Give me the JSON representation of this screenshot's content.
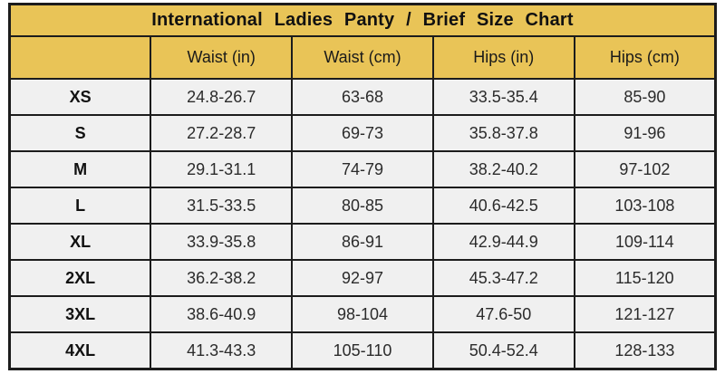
{
  "title": "International Ladies Panty / Brief Size Chart",
  "colors": {
    "header_gold": "#e9c457",
    "border_black": "#1c1c1c",
    "row_background": "#f0f0f0",
    "text_dark": "#2b2b2b"
  },
  "chart_data": {
    "type": "table",
    "title": "International Ladies Panty / Brief Size Chart",
    "columns": [
      "",
      "Waist (in)",
      "Waist (cm)",
      "Hips (in)",
      "Hips (cm)"
    ],
    "rows": [
      [
        "XS",
        "24.8-26.7",
        "63-68",
        "33.5-35.4",
        "85-90"
      ],
      [
        "S",
        "27.2-28.7",
        "69-73",
        "35.8-37.8",
        "91-96"
      ],
      [
        "M",
        "29.1-31.1",
        "74-79",
        "38.2-40.2",
        "97-102"
      ],
      [
        "L",
        "31.5-33.5",
        "80-85",
        "40.6-42.5",
        "103-108"
      ],
      [
        "XL",
        "33.9-35.8",
        "86-91",
        "42.9-44.9",
        "109-114"
      ],
      [
        "2XL",
        "36.2-38.2",
        "92-97",
        "45.3-47.2",
        "115-120"
      ],
      [
        "3XL",
        "38.6-40.9",
        "98-104",
        "47.6-50",
        "121-127"
      ],
      [
        "4XL",
        "41.3-43.3",
        "105-110",
        "50.4-52.4",
        "128-133"
      ]
    ]
  }
}
